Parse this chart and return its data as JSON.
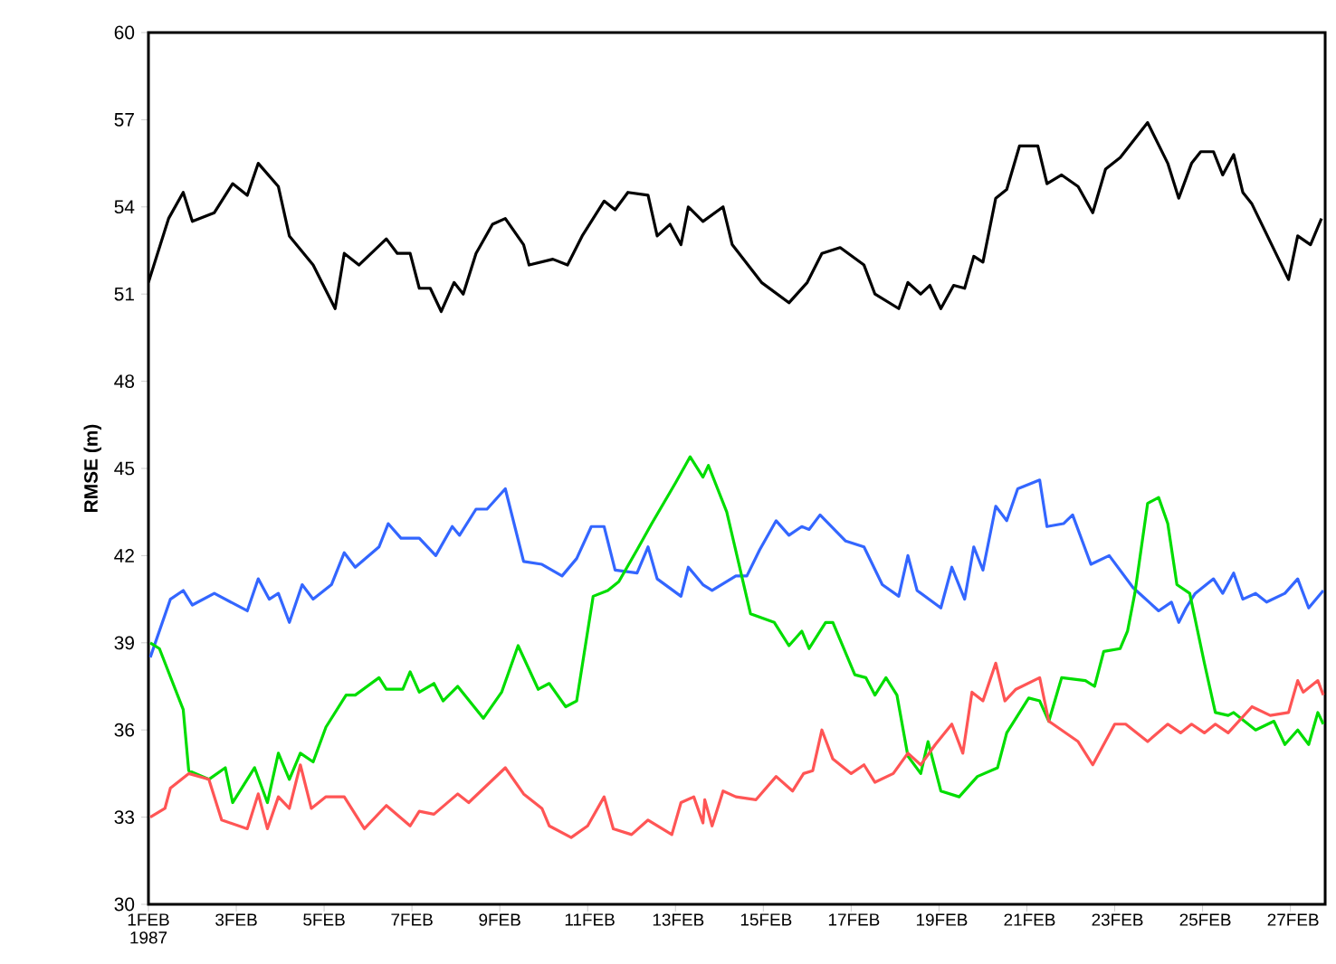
{
  "chart_data": {
    "type": "line",
    "ylabel": "RMSE (m)",
    "xlim": [
      "1987-02-01T00:00",
      "1987-02-27T19:00"
    ],
    "ylim": [
      30,
      60
    ],
    "xticks": [
      {
        "value": "1987-02-01",
        "label": "1FEB 1987"
      },
      {
        "value": "1987-02-03",
        "label": "3FEB"
      },
      {
        "value": "1987-02-05",
        "label": "5FEB"
      },
      {
        "value": "1987-02-07",
        "label": "7FEB"
      },
      {
        "value": "1987-02-09",
        "label": "9FEB"
      },
      {
        "value": "1987-02-11",
        "label": "11FEB"
      },
      {
        "value": "1987-02-13",
        "label": "13FEB"
      },
      {
        "value": "1987-02-15",
        "label": "15FEB"
      },
      {
        "value": "1987-02-17",
        "label": "17FEB"
      },
      {
        "value": "1987-02-19",
        "label": "19FEB"
      },
      {
        "value": "1987-02-21",
        "label": "21FEB"
      },
      {
        "value": "1987-02-23",
        "label": "23FEB"
      },
      {
        "value": "1987-02-25",
        "label": "25FEB"
      },
      {
        "value": "1987-02-27",
        "label": "27FEB"
      }
    ],
    "yticks": [
      30,
      33,
      36,
      39,
      42,
      45,
      48,
      51,
      54,
      57,
      60
    ],
    "series": [
      {
        "color": "#000000",
        "x": [
          "1987-02-01T00:00",
          "1987-02-01T11:00",
          "1987-02-01T19:00",
          "1987-02-02T00:00",
          "1987-02-02T12:00",
          "1987-02-02T22:00",
          "1987-02-03T06:00",
          "1987-02-03T12:00",
          "1987-02-03T23:00",
          "1987-02-04T05:00",
          "1987-02-04T18:00",
          "1987-02-05T06:00",
          "1987-02-05T11:00",
          "1987-02-05T19:00",
          "1987-02-06T10:00",
          "1987-02-06T16:00",
          "1987-02-06T23:00",
          "1987-02-07T04:00",
          "1987-02-07T10:00",
          "1987-02-07T16:00",
          "1987-02-07T23:00",
          "1987-02-08T04:00",
          "1987-02-08T11:00",
          "1987-02-08T20:00",
          "1987-02-09T03:00",
          "1987-02-09T13:00",
          "1987-02-09T16:00",
          "1987-02-10T05:00",
          "1987-02-10T13:00",
          "1987-02-10T21:00",
          "1987-02-11T09:00",
          "1987-02-11T15:00",
          "1987-02-11T22:00",
          "1987-02-12T09:00",
          "1987-02-12T14:00",
          "1987-02-12T21:00",
          "1987-02-13T03:00",
          "1987-02-13T07:00",
          "1987-02-13T15:00",
          "1987-02-14T02:00",
          "1987-02-14T07:00",
          "1987-02-14T23:00",
          "1987-02-15T14:00",
          "1987-02-16T00:00",
          "1987-02-16T08:00",
          "1987-02-16T18:00",
          "1987-02-17T07:00",
          "1987-02-17T13:00",
          "1987-02-18T02:00",
          "1987-02-18T07:00",
          "1987-02-18T14:00",
          "1987-02-18T19:00",
          "1987-02-19T01:00",
          "1987-02-19T08:00",
          "1987-02-19T14:00",
          "1987-02-19T19:00",
          "1987-02-20T00:00",
          "1987-02-20T07:00",
          "1987-02-20T13:00",
          "1987-02-20T20:00",
          "1987-02-21T06:00",
          "1987-02-21T11:00",
          "1987-02-21T19:00",
          "1987-02-22T04:00",
          "1987-02-22T12:00",
          "1987-02-22T19:00",
          "1987-02-23T03:00",
          "1987-02-23T18:00",
          "1987-02-24T05:00",
          "1987-02-24T11:00",
          "1987-02-24T18:00",
          "1987-02-24T23:00",
          "1987-02-25T06:00",
          "1987-02-25T11:00",
          "1987-02-25T17:00",
          "1987-02-25T22:00",
          "1987-02-26T03:00",
          "1987-02-26T23:00",
          "1987-02-27T04:00",
          "1987-02-27T11:00",
          "1987-02-27T17:00"
        ],
        "values": [
          51.4,
          53.6,
          54.5,
          53.5,
          53.8,
          54.8,
          54.4,
          55.5,
          54.7,
          53.0,
          52.0,
          50.5,
          52.4,
          52.0,
          52.9,
          52.4,
          52.4,
          51.2,
          51.2,
          50.4,
          51.4,
          51.0,
          52.4,
          53.4,
          53.6,
          52.7,
          52.0,
          52.2,
          52.0,
          53.0,
          54.2,
          53.9,
          54.5,
          54.4,
          53.0,
          53.4,
          52.7,
          54.0,
          53.5,
          54.0,
          52.7,
          51.4,
          50.7,
          51.4,
          52.4,
          52.6,
          52.0,
          51.0,
          50.5,
          51.4,
          51.0,
          51.3,
          50.5,
          51.3,
          51.2,
          52.3,
          52.1,
          54.3,
          54.6,
          56.1,
          56.1,
          54.8,
          55.1,
          54.7,
          53.8,
          55.3,
          55.7,
          56.9,
          55.5,
          54.3,
          55.5,
          55.9,
          55.9,
          55.1,
          55.8,
          54.5,
          54.1,
          51.5,
          53.0,
          52.7,
          53.6
        ]
      },
      {
        "color": "#3366ff",
        "x": [
          "1987-02-01T01:00",
          "1987-02-01T12:00",
          "1987-02-01T19:00",
          "1987-02-02T00:00",
          "1987-02-02T12:00",
          "1987-02-03T06:00",
          "1987-02-03T12:00",
          "1987-02-03T18:00",
          "1987-02-03T23:00",
          "1987-02-04T05:00",
          "1987-02-04T12:00",
          "1987-02-04T18:00",
          "1987-02-05T04:00",
          "1987-02-05T11:00",
          "1987-02-05T17:00",
          "1987-02-06T06:00",
          "1987-02-06T11:00",
          "1987-02-06T18:00",
          "1987-02-07T04:00",
          "1987-02-07T13:00",
          "1987-02-07T22:00",
          "1987-02-08T02:00",
          "1987-02-08T11:00",
          "1987-02-08T17:00",
          "1987-02-09T03:00",
          "1987-02-09T13:00",
          "1987-02-09T23:00",
          "1987-02-10T10:00",
          "1987-02-10T18:00",
          "1987-02-11T02:00",
          "1987-02-11T09:00",
          "1987-02-11T15:00",
          "1987-02-12T03:00",
          "1987-02-12T09:00",
          "1987-02-12T14:00",
          "1987-02-13T03:00",
          "1987-02-13T07:00",
          "1987-02-13T15:00",
          "1987-02-13T20:00",
          "1987-02-14T09:00",
          "1987-02-14T15:00",
          "1987-02-14T22:00",
          "1987-02-15T07:00",
          "1987-02-15T14:00",
          "1987-02-15T21:00",
          "1987-02-16T01:00",
          "1987-02-16T07:00",
          "1987-02-16T21:00",
          "1987-02-17T07:00",
          "1987-02-17T17:00",
          "1987-02-18T02:00",
          "1987-02-18T07:00",
          "1987-02-18T12:00",
          "1987-02-19T01:00",
          "1987-02-19T07:00",
          "1987-02-19T14:00",
          "1987-02-19T19:00",
          "1987-02-20T00:00",
          "1987-02-20T07:00",
          "1987-02-20T13:00",
          "1987-02-20T19:00",
          "1987-02-21T07:00",
          "1987-02-21T11:00",
          "1987-02-21T20:00",
          "1987-02-22T01:00",
          "1987-02-22T11:00",
          "1987-02-22T21:00",
          "1987-02-23T10:00",
          "1987-02-24T00:00",
          "1987-02-24T07:00",
          "1987-02-24T11:00",
          "1987-02-24T15:00",
          "1987-02-24T20:00",
          "1987-02-25T06:00",
          "1987-02-25T11:00",
          "1987-02-25T17:00",
          "1987-02-25T22:00",
          "1987-02-26T05:00",
          "1987-02-26T11:00",
          "1987-02-26T21:00",
          "1987-02-27T04:00",
          "1987-02-27T10:00",
          "1987-02-27T18:00"
        ],
        "values": [
          38.5,
          40.5,
          40.8,
          40.3,
          40.7,
          40.1,
          41.2,
          40.5,
          40.7,
          39.7,
          41.0,
          40.5,
          41.0,
          42.1,
          41.6,
          42.3,
          43.1,
          42.6,
          42.6,
          42.0,
          43.0,
          42.7,
          43.6,
          43.6,
          44.3,
          41.8,
          41.7,
          41.3,
          41.9,
          43.0,
          43.0,
          41.5,
          41.4,
          42.3,
          41.2,
          40.6,
          41.6,
          41.0,
          40.8,
          41.3,
          41.3,
          42.2,
          43.2,
          42.7,
          43.0,
          42.9,
          43.4,
          42.5,
          42.3,
          41.0,
          40.6,
          42.0,
          40.8,
          40.2,
          41.6,
          40.5,
          42.3,
          41.5,
          43.7,
          43.2,
          44.3,
          44.6,
          43.0,
          43.1,
          43.4,
          41.7,
          42.0,
          40.9,
          40.1,
          40.4,
          39.7,
          40.2,
          40.7,
          41.2,
          40.7,
          41.4,
          40.5,
          40.7,
          40.4,
          40.7,
          41.2,
          40.2,
          40.8
        ]
      },
      {
        "color": "#00dd00",
        "x": [
          "1987-02-01T01:00",
          "1987-02-01T06:00",
          "1987-02-01T19:00",
          "1987-02-01T22:00",
          "1987-02-02T09:00",
          "1987-02-02T18:00",
          "1987-02-02T22:00",
          "1987-02-03T10:00",
          "1987-02-03T17:00",
          "1987-02-03T23:00",
          "1987-02-04T05:00",
          "1987-02-04T11:00",
          "1987-02-04T18:00",
          "1987-02-05T01:00",
          "1987-02-05T12:00",
          "1987-02-05T17:00",
          "1987-02-06T06:00",
          "1987-02-06T10:00",
          "1987-02-06T19:00",
          "1987-02-06T23:00",
          "1987-02-07T04:00",
          "1987-02-07T12:00",
          "1987-02-07T17:00",
          "1987-02-08T01:00",
          "1987-02-08T15:00",
          "1987-02-09T01:00",
          "1987-02-09T10:00",
          "1987-02-09T21:00",
          "1987-02-10T03:00",
          "1987-02-10T12:00",
          "1987-02-10T18:00",
          "1987-02-11T03:00",
          "1987-02-11T11:00",
          "1987-02-11T17:00",
          "1987-02-12T03:00",
          "1987-02-12T11:00",
          "1987-02-13T00:00",
          "1987-02-13T08:00",
          "1987-02-13T15:00",
          "1987-02-13T18:00",
          "1987-02-14T04:00",
          "1987-02-14T17:00",
          "1987-02-15T06:00",
          "1987-02-15T14:00",
          "1987-02-15T21:00",
          "1987-02-16T01:00",
          "1987-02-16T10:00",
          "1987-02-16T14:00",
          "1987-02-17T02:00",
          "1987-02-17T08:00",
          "1987-02-17T13:00",
          "1987-02-17T19:00",
          "1987-02-18T01:00",
          "1987-02-18T07:00",
          "1987-02-18T14:00",
          "1987-02-18T18:00",
          "1987-02-19T01:00",
          "1987-02-19T11:00",
          "1987-02-19T21:00",
          "1987-02-20T08:00",
          "1987-02-20T13:00",
          "1987-02-21T01:00",
          "1987-02-21T07:00",
          "1987-02-21T12:00",
          "1987-02-21T19:00",
          "1987-02-22T08:00",
          "1987-02-22T13:00",
          "1987-02-22T18:00",
          "1987-02-23T03:00",
          "1987-02-23T07:00",
          "1987-02-23T11:00",
          "1987-02-23T18:00",
          "1987-02-24T00:00",
          "1987-02-24T05:00",
          "1987-02-24T10:00",
          "1987-02-24T17:00",
          "1987-02-25T01:00",
          "1987-02-25T07:00",
          "1987-02-25T14:00",
          "1987-02-25T17:00",
          "1987-02-26T05:00",
          "1987-02-26T15:00",
          "1987-02-26T21:00",
          "1987-02-27T04:00",
          "1987-02-27T10:00",
          "1987-02-27T15:00",
          "1987-02-27T18:00"
        ],
        "values": [
          39.0,
          38.8,
          36.7,
          34.6,
          34.3,
          34.7,
          33.5,
          34.7,
          33.5,
          35.2,
          34.3,
          35.2,
          34.9,
          36.1,
          37.2,
          37.2,
          37.8,
          37.4,
          37.4,
          38.0,
          37.3,
          37.6,
          37.0,
          37.5,
          36.4,
          37.3,
          38.9,
          37.4,
          37.6,
          36.8,
          37.0,
          40.6,
          40.8,
          41.1,
          42.2,
          43.1,
          44.5,
          45.4,
          44.7,
          45.1,
          43.5,
          40.0,
          39.7,
          38.9,
          39.4,
          38.8,
          39.7,
          39.7,
          37.9,
          37.8,
          37.2,
          37.8,
          37.2,
          35.1,
          34.5,
          35.6,
          33.9,
          33.7,
          34.4,
          34.7,
          35.9,
          37.1,
          37.0,
          36.3,
          37.8,
          37.7,
          37.5,
          38.7,
          38.8,
          39.4,
          40.7,
          43.8,
          44.0,
          43.1,
          41.0,
          40.7,
          38.3,
          36.6,
          36.5,
          36.6,
          36.0,
          36.3,
          35.5,
          36.0,
          35.5,
          36.6,
          36.2
        ]
      },
      {
        "color": "#ff5555",
        "x": [
          "1987-02-01T01:00",
          "1987-02-01T09:00",
          "1987-02-01T12:00",
          "1987-02-01T22:00",
          "1987-02-02T09:00",
          "1987-02-02T16:00",
          "1987-02-03T06:00",
          "1987-02-03T12:00",
          "1987-02-03T17:00",
          "1987-02-03T23:00",
          "1987-02-04T05:00",
          "1987-02-04T11:00",
          "1987-02-04T17:00",
          "1987-02-05T01:00",
          "1987-02-05T11:00",
          "1987-02-05T22:00",
          "1987-02-06T10:00",
          "1987-02-06T23:00",
          "1987-02-07T04:00",
          "1987-02-07T12:00",
          "1987-02-08T01:00",
          "1987-02-08T07:00",
          "1987-02-09T03:00",
          "1987-02-09T13:00",
          "1987-02-09T23:00",
          "1987-02-10T03:00",
          "1987-02-10T15:00",
          "1987-02-11T00:00",
          "1987-02-11T09:00",
          "1987-02-11T14:00",
          "1987-02-12T00:00",
          "1987-02-12T09:00",
          "1987-02-12T22:00",
          "1987-02-13T03:00",
          "1987-02-13T10:00",
          "1987-02-13T15:00",
          "1987-02-13T16:00",
          "1987-02-13T20:00",
          "1987-02-14T02:00",
          "1987-02-14T09:00",
          "1987-02-14T20:00",
          "1987-02-15T07:00",
          "1987-02-15T16:00",
          "1987-02-15T22:00",
          "1987-02-16T03:00",
          "1987-02-16T08:00",
          "1987-02-16T14:00",
          "1987-02-17T00:00",
          "1987-02-17T07:00",
          "1987-02-17T13:00",
          "1987-02-17T23:00",
          "1987-02-18T07:00",
          "1987-02-18T14:00",
          "1987-02-18T22:00",
          "1987-02-19T07:00",
          "1987-02-19T13:00",
          "1987-02-19T18:00",
          "1987-02-20T00:00",
          "1987-02-20T07:00",
          "1987-02-20T12:00",
          "1987-02-20T18:00",
          "1987-02-21T07:00",
          "1987-02-21T12:00",
          "1987-02-22T04:00",
          "1987-02-22T12:00",
          "1987-02-23T00:00",
          "1987-02-23T06:00",
          "1987-02-23T18:00",
          "1987-02-24T05:00",
          "1987-02-24T12:00",
          "1987-02-24T18:00",
          "1987-02-25T01:00",
          "1987-02-25T07:00",
          "1987-02-25T14:00",
          "1987-02-26T03:00",
          "1987-02-26T13:00",
          "1987-02-26T23:00",
          "1987-02-27T04:00",
          "1987-02-27T07:00",
          "1987-02-27T15:00",
          "1987-02-27T18:00"
        ],
        "values": [
          33.0,
          33.3,
          34.0,
          34.5,
          34.3,
          32.9,
          32.6,
          33.8,
          32.6,
          33.7,
          33.3,
          34.8,
          33.3,
          33.7,
          33.7,
          32.6,
          33.4,
          32.7,
          33.2,
          33.1,
          33.8,
          33.5,
          34.7,
          33.8,
          33.3,
          32.7,
          32.3,
          32.7,
          33.7,
          32.6,
          32.4,
          32.9,
          32.4,
          33.5,
          33.7,
          32.8,
          33.6,
          32.7,
          33.9,
          33.7,
          33.6,
          34.4,
          33.9,
          34.5,
          34.6,
          36.0,
          35.0,
          34.5,
          34.8,
          34.2,
          34.5,
          35.2,
          34.8,
          35.5,
          36.2,
          35.2,
          37.3,
          37.0,
          38.3,
          37.0,
          37.4,
          37.8,
          36.3,
          35.6,
          34.8,
          36.2,
          36.2,
          35.6,
          36.2,
          35.9,
          36.2,
          35.9,
          36.2,
          35.9,
          36.8,
          36.5,
          36.6,
          37.7,
          37.3,
          37.7,
          37.2
        ]
      }
    ]
  }
}
